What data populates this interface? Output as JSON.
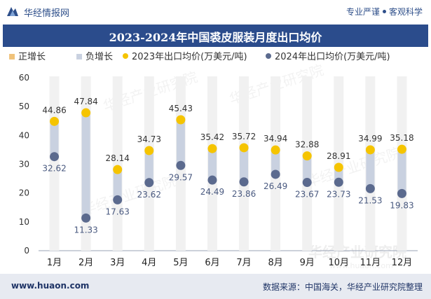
{
  "header": {
    "brand": "华经情报网",
    "tag_left": "专业严谨",
    "tag_right": "客观科学"
  },
  "footer": {
    "url": "www.huaon.com",
    "source": "数据来源：中国海关，华经产业研究院整理"
  },
  "watermark": "华经产业研究院",
  "watermark_url": "www.huaon.com",
  "colors": {
    "title_bar": "#2b4c8c",
    "positive": "#f0c27a",
    "negative": "#c9d1e0",
    "series_2023": "#f5c400",
    "series_2024": "#5b6a8e"
  },
  "chart_data": {
    "type": "dumbbell",
    "title": "2023-2024年中国裘皮服装月度出口均价",
    "categories": [
      "1月",
      "2月",
      "3月",
      "4月",
      "5月",
      "6月",
      "7月",
      "8月",
      "9月",
      "10月",
      "11月",
      "12月"
    ],
    "legend": [
      "正增长",
      "负增长",
      "2023年出口均价(万美元/吨)",
      "2024年出口均价(万美元/吨)"
    ],
    "series": [
      {
        "name": "2023年出口均价(万美元/吨)",
        "values": [
          44.86,
          47.84,
          28.14,
          34.73,
          45.43,
          35.42,
          35.72,
          34.94,
          32.88,
          28.91,
          34.99,
          35.18
        ]
      },
      {
        "name": "2024年出口均价(万美元/吨)",
        "values": [
          32.62,
          11.33,
          17.63,
          23.62,
          29.57,
          24.49,
          23.86,
          26.49,
          23.67,
          23.73,
          21.53,
          19.83
        ]
      }
    ],
    "ylim": [
      0,
      60
    ],
    "yticks": [
      "0",
      "10",
      "20",
      "30",
      "40",
      "50",
      "60"
    ],
    "grid": false,
    "legend_position": "top"
  }
}
